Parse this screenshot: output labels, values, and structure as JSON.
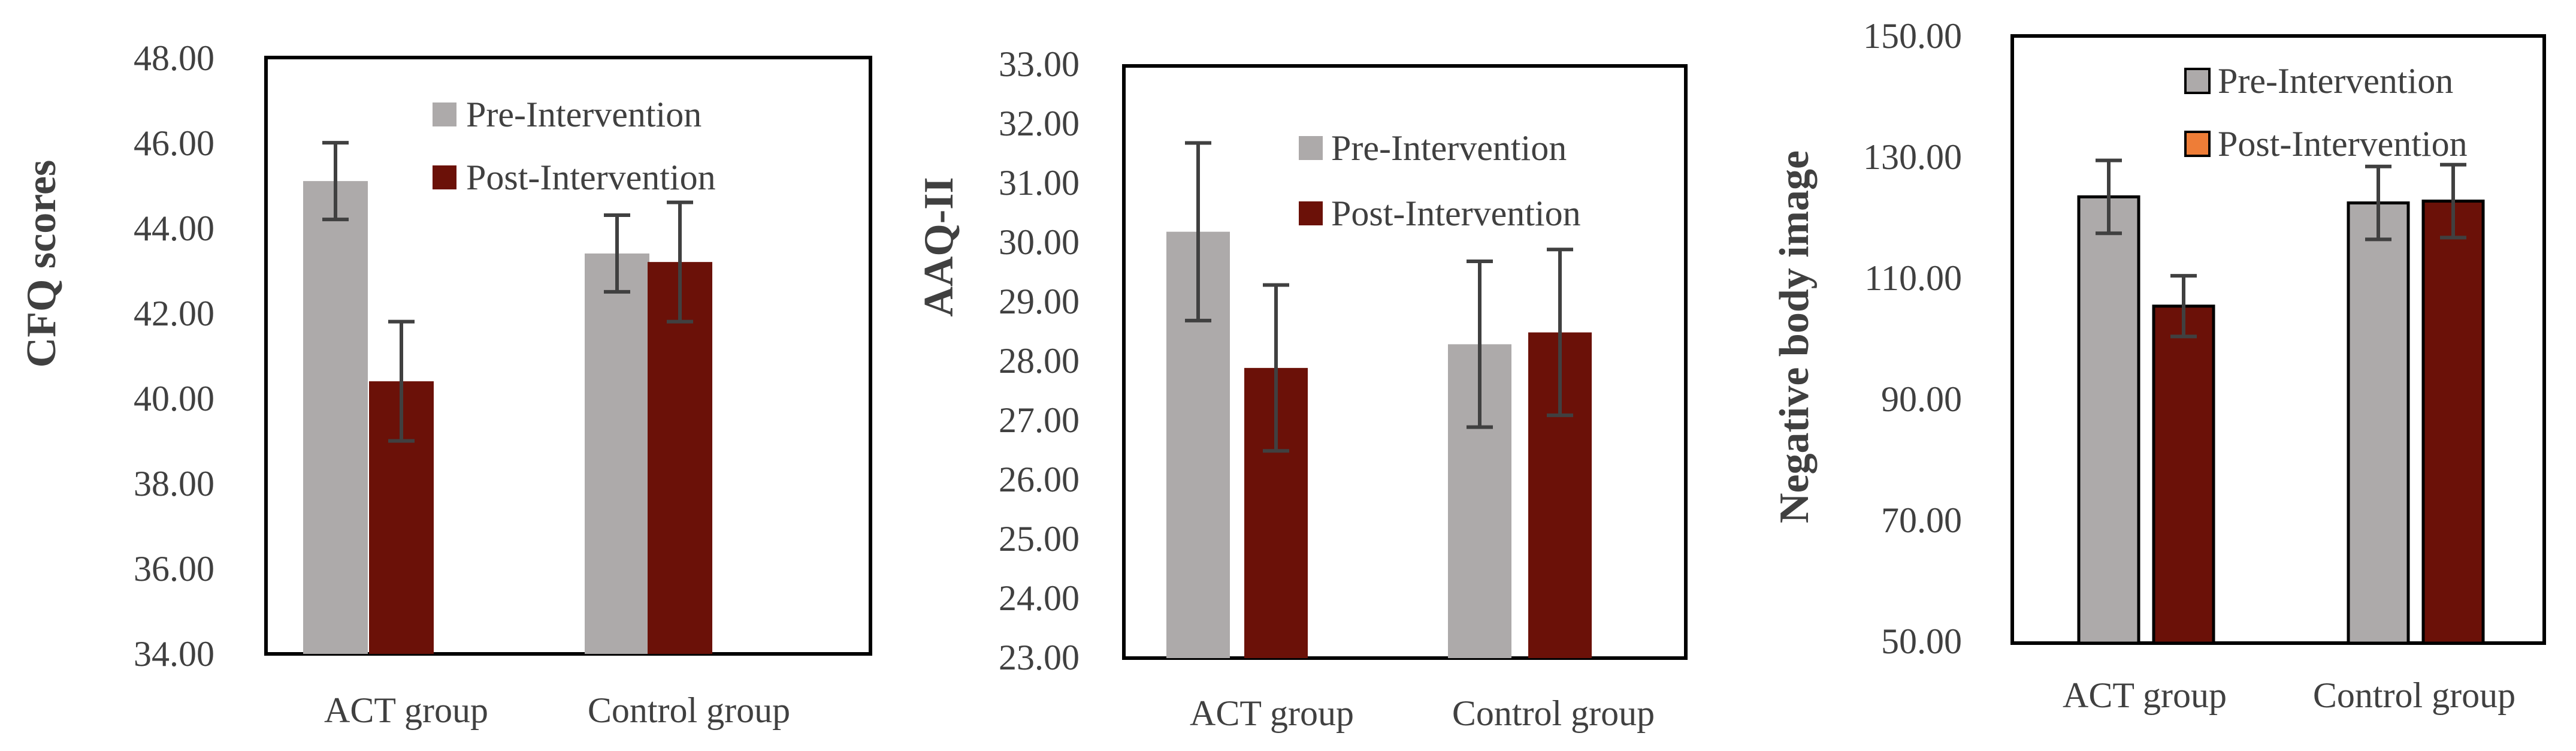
{
  "colors": {
    "pre": "#adaaaa",
    "post": "#6b1108",
    "post_legend_chart3": "#ee7d37",
    "error_bar": "#404040",
    "axis": "#000000",
    "text": "#404040"
  },
  "chart_data": [
    {
      "type": "bar",
      "ylabel": "CFQ scores",
      "categories": [
        "ACT group",
        "Control group"
      ],
      "ylim": [
        34,
        48
      ],
      "yticks": [
        "34.00",
        "36.00",
        "38.00",
        "40.00",
        "42.00",
        "44.00",
        "46.00",
        "48.00"
      ],
      "series": [
        {
          "name": "Pre-Intervention",
          "values": [
            45.1,
            43.4
          ],
          "errors": [
            0.9,
            0.9
          ]
        },
        {
          "name": "Post-Intervention",
          "values": [
            40.4,
            43.2
          ],
          "errors": [
            1.4,
            1.4
          ]
        }
      ],
      "legend": [
        "Pre-Intervention",
        "Post-Intervention"
      ]
    },
    {
      "type": "bar",
      "ylabel": "AAQ-II",
      "categories": [
        "ACT group",
        "Control group"
      ],
      "ylim": [
        23,
        33
      ],
      "yticks": [
        "23.00",
        "24.00",
        "25.00",
        "26.00",
        "27.00",
        "28.00",
        "29.00",
        "30.00",
        "31.00",
        "32.00",
        "33.00"
      ],
      "series": [
        {
          "name": "Pre-Intervention",
          "values": [
            30.2,
            28.3
          ],
          "errors": [
            1.5,
            1.4
          ]
        },
        {
          "name": "Post-Intervention",
          "values": [
            27.9,
            28.5
          ],
          "errors": [
            1.4,
            1.4
          ]
        }
      ],
      "legend": [
        "Pre-Intervention",
        "Post-Intervention"
      ]
    },
    {
      "type": "bar",
      "ylabel": "Negative body image",
      "categories": [
        "ACT group",
        "Control group"
      ],
      "ylim": [
        50,
        150
      ],
      "yticks": [
        "50.00",
        "70.00",
        "90.00",
        "110.00",
        "130.00",
        "150.00"
      ],
      "series": [
        {
          "name": "Pre-Intervention",
          "values": [
            123.5,
            122.5
          ],
          "errors": [
            6,
            6
          ]
        },
        {
          "name": "Post-Intervention",
          "values": [
            105.5,
            122.8
          ],
          "errors": [
            5,
            6
          ]
        }
      ],
      "legend": [
        "Pre-Intervention",
        "Post-Intervention"
      ]
    }
  ]
}
